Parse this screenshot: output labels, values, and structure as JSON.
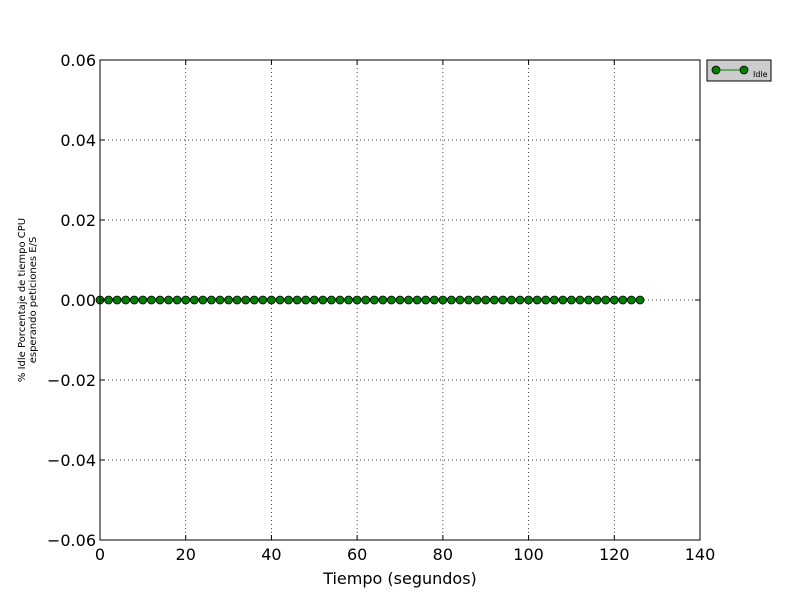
{
  "chart_data": {
    "type": "line",
    "xlabel": "Tiempo (segundos)",
    "ylabel_lines": [
      "% Idle Porcentaje de tiempo CPU",
      "esperando peticiones E/S"
    ],
    "xlim": [
      0,
      140
    ],
    "ylim": [
      -0.06,
      0.06
    ],
    "x_ticks": [
      0,
      20,
      40,
      60,
      80,
      100,
      120,
      140
    ],
    "x_tick_labels": [
      "0",
      "20",
      "40",
      "60",
      "80",
      "100",
      "120",
      "140"
    ],
    "y_ticks": [
      0.06,
      0.04,
      0.02,
      0.0,
      -0.02,
      -0.04,
      -0.06
    ],
    "y_tick_labels": [
      "0.06",
      "0.04",
      "0.02",
      "0.00",
      "−0.02",
      "−0.04",
      "−0.06"
    ],
    "grid": true,
    "legend_position": "outside-top-right",
    "series": [
      {
        "name": "Idle",
        "color": "#008000",
        "marker": "circle",
        "x_start": 0,
        "x_step": 2,
        "x_end": 126,
        "y_constant": 0.0
      }
    ]
  }
}
